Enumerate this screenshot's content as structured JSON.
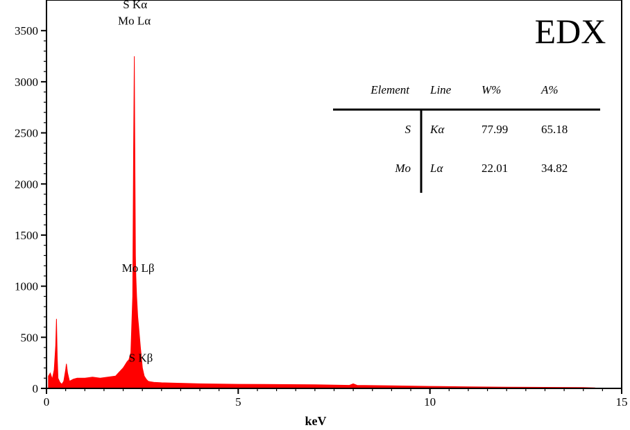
{
  "chart_data": {
    "type": "area",
    "title": "EDX",
    "xlabel": "keV",
    "ylabel": "",
    "xlim": [
      0,
      15
    ],
    "ylim": [
      0,
      3800
    ],
    "x_ticks": [
      0,
      5,
      10,
      15
    ],
    "y_ticks": [
      0,
      500,
      1000,
      1500,
      2000,
      2500,
      3000,
      3500
    ],
    "grid": false,
    "series": [
      {
        "color": "#ff0000",
        "x": [
          0.05,
          0.1,
          0.15,
          0.2,
          0.24,
          0.26,
          0.28,
          0.3,
          0.35,
          0.4,
          0.45,
          0.5,
          0.52,
          0.55,
          0.6,
          0.7,
          0.8,
          1.0,
          1.2,
          1.4,
          1.6,
          1.8,
          1.9,
          2.0,
          2.05,
          2.1,
          2.15,
          2.2,
          2.25,
          2.27,
          2.29,
          2.3,
          2.31,
          2.32,
          2.33,
          2.35,
          2.38,
          2.4,
          2.45,
          2.5,
          2.55,
          2.6,
          2.65,
          2.7,
          2.8,
          3.0,
          3.5,
          4.0,
          5.0,
          6.0,
          7.0,
          7.9,
          8.0,
          8.1,
          9.0,
          10.0,
          11.0,
          12.0,
          13.0,
          14.0,
          14.3,
          14.35
        ],
        "y": [
          120,
          150,
          90,
          180,
          420,
          680,
          300,
          100,
          60,
          40,
          70,
          180,
          240,
          150,
          70,
          90,
          100,
          100,
          110,
          100,
          110,
          120,
          160,
          200,
          230,
          260,
          280,
          350,
          900,
          2300,
          3250,
          2600,
          1900,
          1300,
          1100,
          900,
          700,
          620,
          400,
          200,
          120,
          90,
          70,
          65,
          60,
          55,
          50,
          45,
          40,
          38,
          35,
          30,
          45,
          30,
          25,
          20,
          15,
          12,
          10,
          8,
          5,
          0
        ]
      }
    ],
    "peak_labels": [
      {
        "text": "S Kα",
        "x": 2.31,
        "y": 3720
      },
      {
        "text": "Mo Lα",
        "x": 2.29,
        "y": 3560
      },
      {
        "text": "Mo Lβ",
        "x": 2.39,
        "y": 1140
      },
      {
        "text": "S Kβ",
        "x": 2.46,
        "y": 260
      }
    ],
    "table": {
      "headers": [
        "Element",
        "Line",
        "W%",
        "A%"
      ],
      "rows": [
        [
          "S",
          "Kα",
          "77.99",
          "65.18"
        ],
        [
          "Mo",
          "Lα",
          "22.01",
          "34.82"
        ]
      ]
    }
  }
}
